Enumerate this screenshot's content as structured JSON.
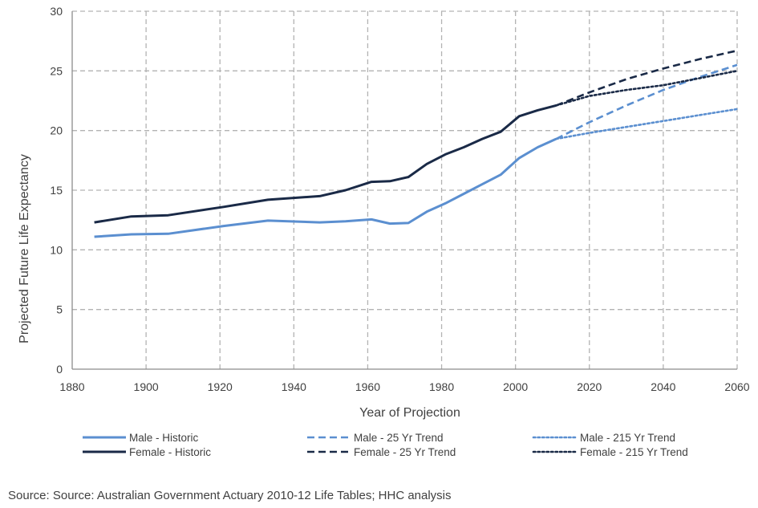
{
  "chart_data": {
    "type": "line",
    "title": "",
    "xlabel": "Year of Projection",
    "ylabel": "Projected Future Life Expectancy",
    "xlim": [
      1880,
      2060
    ],
    "ylim": [
      0,
      30
    ],
    "xticks": [
      1880,
      1900,
      1920,
      1940,
      1960,
      1980,
      2000,
      2020,
      2040,
      2060
    ],
    "yticks": [
      0,
      5,
      10,
      15,
      20,
      25,
      30
    ],
    "grid": true,
    "legend_position": "bottom",
    "colors": {
      "male": "#5b8fd0",
      "female": "#1a2a47",
      "grid": "#b3b3b3"
    },
    "series": [
      {
        "name": "Male - Historic",
        "style": "solid",
        "color": "#5b8fd0",
        "x": [
          1886,
          1896,
          1906,
          1921,
          1933,
          1947,
          1954,
          1961,
          1966,
          1971,
          1976,
          1981,
          1986,
          1991,
          1996,
          2001,
          2006,
          2011
        ],
        "y": [
          11.1,
          11.3,
          11.35,
          12.0,
          12.45,
          12.3,
          12.4,
          12.55,
          12.2,
          12.25,
          13.2,
          13.9,
          14.7,
          15.5,
          16.3,
          17.7,
          18.6,
          19.3
        ]
      },
      {
        "name": "Female - Historic",
        "style": "solid",
        "color": "#1a2a47",
        "x": [
          1886,
          1896,
          1906,
          1921,
          1933,
          1947,
          1954,
          1961,
          1966,
          1971,
          1976,
          1981,
          1986,
          1991,
          1996,
          2001,
          2006,
          2011
        ],
        "y": [
          12.3,
          12.8,
          12.9,
          13.6,
          14.2,
          14.5,
          15.0,
          15.7,
          15.75,
          16.1,
          17.2,
          18.0,
          18.6,
          19.3,
          19.9,
          21.2,
          21.7,
          22.1
        ]
      },
      {
        "name": "Male - 25 Yr Trend",
        "style": "dashed",
        "color": "#5b8fd0",
        "x": [
          2011,
          2020,
          2030,
          2040,
          2050,
          2060
        ],
        "y": [
          19.3,
          20.7,
          22.1,
          23.4,
          24.5,
          25.5
        ]
      },
      {
        "name": "Female - 25 Yr Trend",
        "style": "dashed",
        "color": "#1a2a47",
        "x": [
          2011,
          2020,
          2030,
          2040,
          2050,
          2060
        ],
        "y": [
          22.1,
          23.2,
          24.3,
          25.2,
          26.0,
          26.7
        ]
      },
      {
        "name": "Male - 215 Yr Trend",
        "style": "dotted",
        "color": "#5b8fd0",
        "x": [
          2011,
          2020,
          2030,
          2040,
          2050,
          2060
        ],
        "y": [
          19.3,
          19.8,
          20.3,
          20.8,
          21.3,
          21.8
        ]
      },
      {
        "name": "Female - 215 Yr Trend",
        "style": "dotted",
        "color": "#1a2a47",
        "x": [
          2011,
          2020,
          2030,
          2040,
          2050,
          2060
        ],
        "y": [
          22.1,
          22.9,
          23.4,
          23.8,
          24.4,
          25.0
        ]
      }
    ],
    "legend_order": [
      "Male - Historic",
      "Male - 25 Yr Trend",
      "Male - 215 Yr Trend",
      "Female - Historic",
      "Female - 25 Yr Trend",
      "Female - 215 Yr Trend"
    ]
  },
  "source_note": "Source: Source: Australian Government Actuary 2010-12 Life Tables; HHC analysis"
}
